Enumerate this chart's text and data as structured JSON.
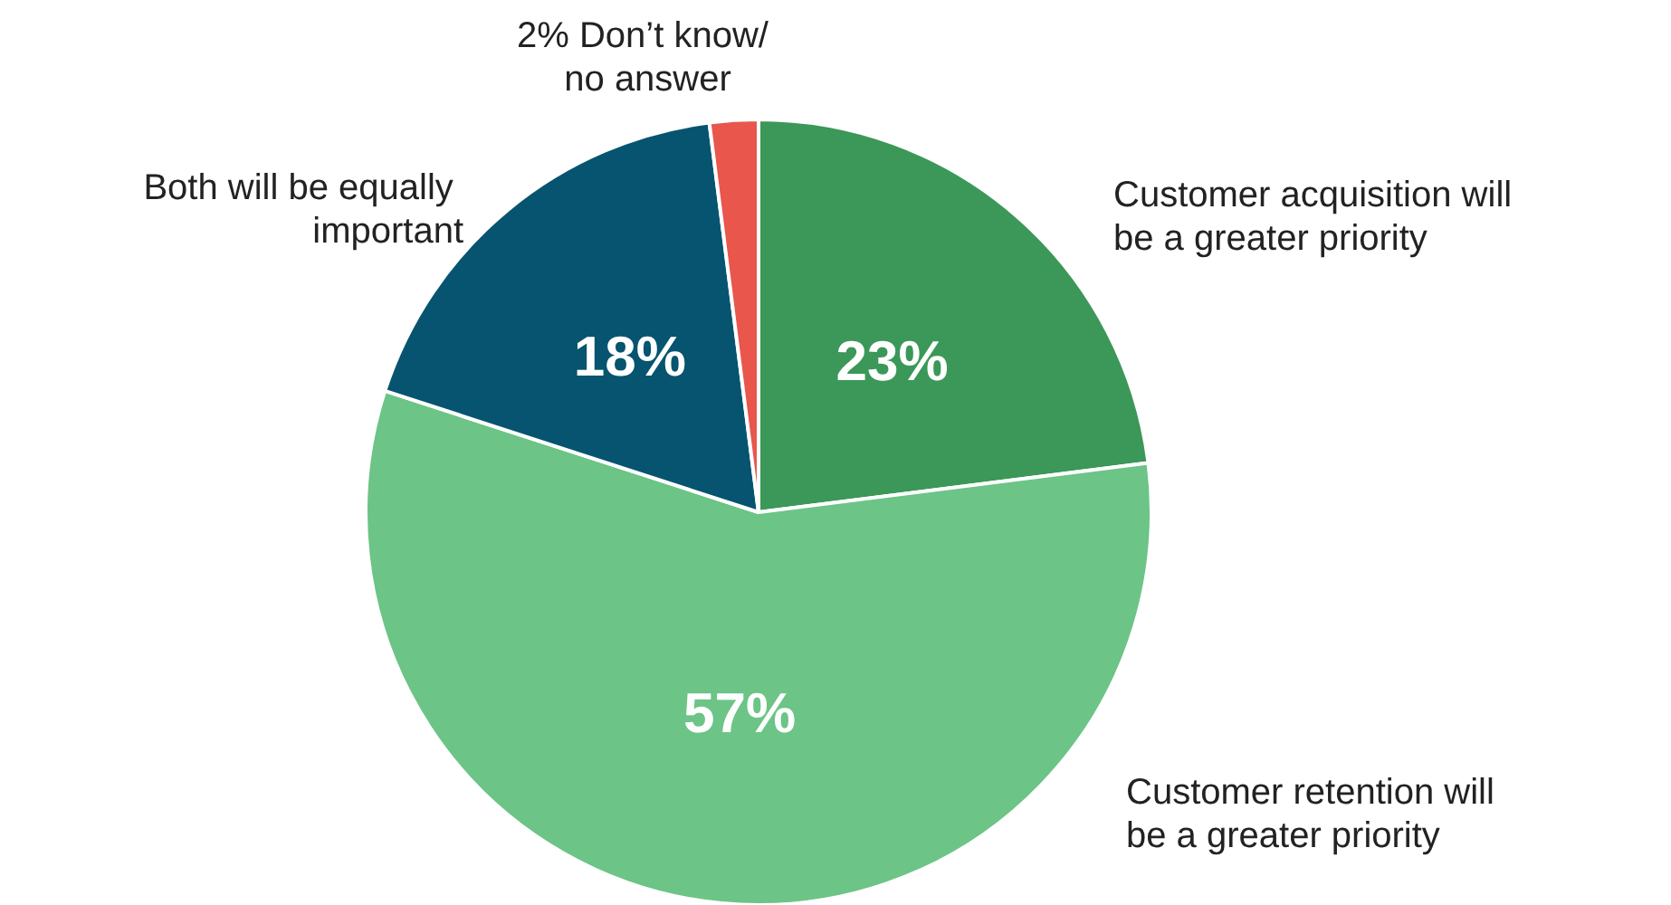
{
  "chart_data": {
    "type": "pie",
    "categories": [
      "Customer acquisition will be a greater priority",
      "Customer retention will be a greater priority",
      "Both will be equally important",
      "Don’t know/ no answer"
    ],
    "values": [
      23,
      57,
      18,
      2
    ],
    "value_labels": [
      "23%",
      "57%",
      "18%",
      "2%"
    ],
    "colors": [
      "#3b9858",
      "#6cc486",
      "#06546f",
      "#e9564c"
    ]
  }
}
